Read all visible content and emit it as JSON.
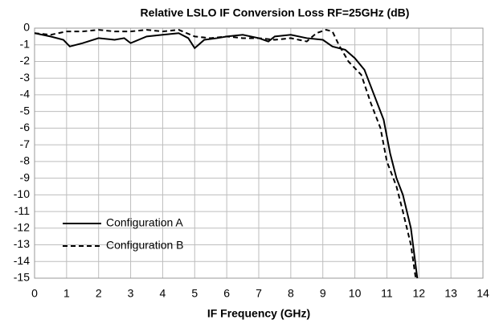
{
  "chart_data": {
    "type": "line",
    "title": "Relative LSLO IF Conversion Loss RF=25GHz (dB)",
    "x_label": "IF Frequency  (GHz)",
    "xlim": [
      0,
      14
    ],
    "xticks": [
      0,
      1,
      2,
      3,
      4,
      5,
      6,
      7,
      8,
      9,
      10,
      11,
      12,
      13,
      14
    ],
    "ylim": [
      -15,
      0
    ],
    "yticks": [
      0,
      -1,
      -2,
      -3,
      -4,
      -5,
      -6,
      -7,
      -8,
      -9,
      -10,
      -11,
      -12,
      -13,
      -14,
      -15
    ],
    "grid": true,
    "legend": "lower-left",
    "series": [
      {
        "name": "Configuration A",
        "color": "#000000",
        "line_style": "solid",
        "x": [
          0,
          0.5,
          0.9,
          1.1,
          1.5,
          2,
          2.5,
          2.8,
          3,
          3.5,
          4,
          4.5,
          4.8,
          5,
          5.3,
          5.7,
          6,
          6.5,
          7,
          7.3,
          7.5,
          8,
          8.5,
          9,
          9.3,
          9.7,
          10,
          10.3,
          10.6,
          10.9,
          11.1,
          11.3,
          11.5,
          11.75,
          11.95
        ],
        "values": [
          -0.3,
          -0.5,
          -0.7,
          -1.1,
          -0.9,
          -0.6,
          -0.7,
          -0.6,
          -0.9,
          -0.5,
          -0.4,
          -0.3,
          -0.6,
          -1.2,
          -0.7,
          -0.6,
          -0.5,
          -0.4,
          -0.6,
          -0.8,
          -0.5,
          -0.4,
          -0.6,
          -0.7,
          -1.1,
          -1.3,
          -1.8,
          -2.5,
          -4,
          -5.5,
          -7.5,
          -9,
          -10,
          -12,
          -15
        ]
      },
      {
        "name": "Configuration B",
        "color": "#000000",
        "line_style": "dashed",
        "x": [
          0,
          0.5,
          1,
          1.5,
          2,
          2.5,
          3,
          3.5,
          4,
          4.5,
          5,
          5.5,
          6,
          6.5,
          7,
          7.5,
          8,
          8.5,
          8.8,
          9.1,
          9.3,
          9.5,
          9.8,
          10.2,
          10.5,
          10.8,
          11,
          11.3,
          11.5,
          11.75,
          11.9
        ],
        "values": [
          -0.3,
          -0.4,
          -0.2,
          -0.2,
          -0.1,
          -0.2,
          -0.2,
          -0.1,
          -0.2,
          -0.1,
          -0.5,
          -0.6,
          -0.5,
          -0.6,
          -0.6,
          -0.7,
          -0.6,
          -0.8,
          -0.3,
          -0.1,
          -0.2,
          -1,
          -2,
          -2.8,
          -4.5,
          -6,
          -8,
          -9.5,
          -11,
          -13,
          -15
        ]
      }
    ]
  }
}
